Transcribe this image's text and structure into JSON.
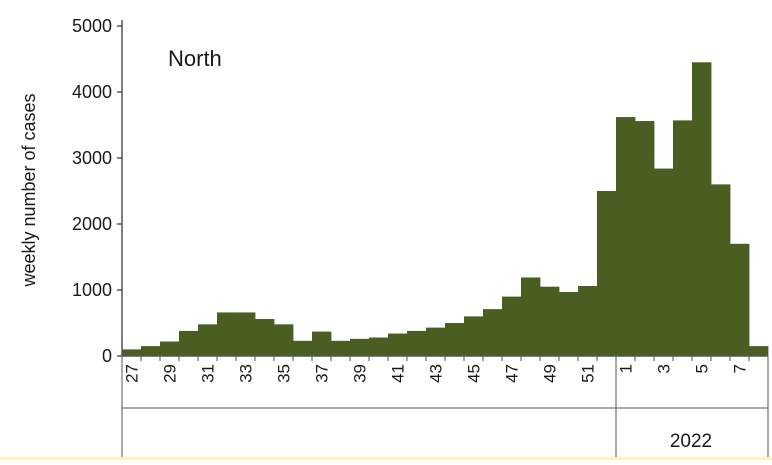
{
  "chart_data": {
    "type": "bar",
    "title": "North",
    "ylabel": "weekly number of cases",
    "xlabel": "",
    "ylim": [
      0,
      5000
    ],
    "y_ticks": [
      "0",
      "1000",
      "2000",
      "3000",
      "4000",
      "5000"
    ],
    "bar_color": "#4a5e22",
    "categories": [
      "27",
      "28",
      "29",
      "30",
      "31",
      "32",
      "33",
      "34",
      "35",
      "36",
      "37",
      "38",
      "39",
      "40",
      "41",
      "42",
      "43",
      "44",
      "45",
      "46",
      "47",
      "48",
      "49",
      "50",
      "51",
      "52",
      "1",
      "2",
      "3",
      "4",
      "5",
      "6",
      "7",
      "8"
    ],
    "x_tick_labels": [
      "27",
      "",
      "29",
      "",
      "31",
      "",
      "33",
      "",
      "35",
      "",
      "37",
      "",
      "39",
      "",
      "41",
      "",
      "43",
      "",
      "45",
      "",
      "47",
      "",
      "49",
      "",
      "51",
      "",
      "1",
      "",
      "3",
      "",
      "5",
      "",
      "7",
      ""
    ],
    "year_label": "2022",
    "values": [
      100,
      150,
      220,
      380,
      480,
      660,
      660,
      560,
      480,
      230,
      370,
      230,
      260,
      280,
      340,
      380,
      430,
      500,
      600,
      710,
      900,
      1190,
      1050,
      970,
      1060,
      2500,
      3620,
      3560,
      2840,
      3570,
      4450,
      2600,
      1700,
      150
    ]
  }
}
